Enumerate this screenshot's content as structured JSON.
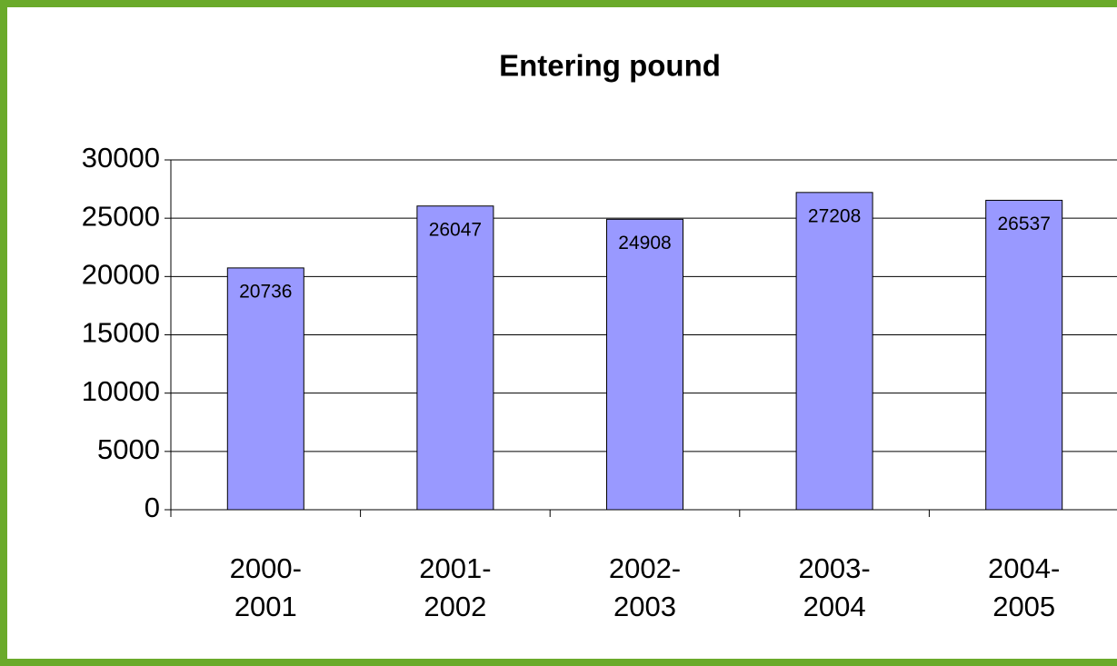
{
  "chart_data": {
    "type": "bar",
    "title": "Entering pound",
    "categories": [
      "2000-2001",
      "2001-2002",
      "2002-2003",
      "2003-2004",
      "2004-2005"
    ],
    "values": [
      20736,
      26047,
      24908,
      27208,
      26537
    ],
    "color": "#9999ff",
    "ylim": [
      0,
      30000
    ],
    "yticks": [
      0,
      5000,
      10000,
      15000,
      20000,
      25000,
      30000
    ],
    "grid": true
  }
}
